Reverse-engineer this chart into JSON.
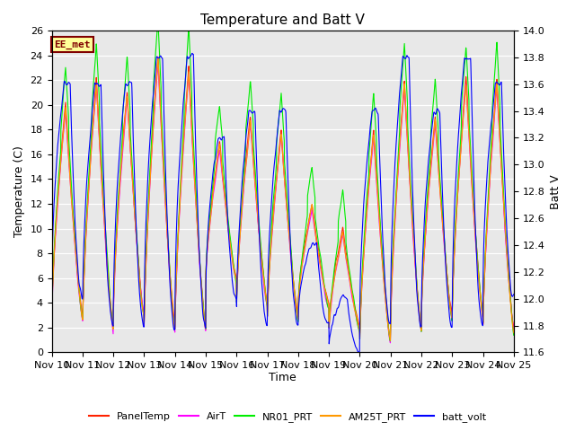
{
  "title": "Temperature and Batt V",
  "xlabel": "Time",
  "ylabel_left": "Temperature (C)",
  "ylabel_right": "Batt V",
  "ylim_left": [
    0,
    26
  ],
  "ylim_right": [
    11.6,
    14.0
  ],
  "x_start": 0,
  "x_end": 15,
  "x_ticks": [
    0,
    1,
    2,
    3,
    4,
    5,
    6,
    7,
    8,
    9,
    10,
    11,
    12,
    13,
    14,
    15
  ],
  "x_tick_labels": [
    "Nov 10",
    "Nov 11",
    "Nov 12",
    "Nov 13",
    "Nov 14",
    "Nov 15",
    "Nov 16",
    "Nov 17",
    "Nov 18",
    "Nov 19",
    "Nov 20",
    "Nov 21",
    "Nov 22",
    "Nov 23",
    "Nov 24",
    "Nov 25"
  ],
  "annotation_text": "EE_met",
  "annotation_fgcolor": "#800000",
  "annotation_bgcolor": "#ffff99",
  "annotation_edgecolor": "#800000",
  "plot_bgcolor": "#e8e8e8",
  "series_colors": {
    "PanelTemp": "#ff2200",
    "AirT": "#ff00ff",
    "NR01_PRT": "#00ee00",
    "AM25T_PRT": "#ff9900",
    "batt_volt": "#0000ff"
  },
  "yticks_left": [
    0,
    2,
    4,
    6,
    8,
    10,
    12,
    14,
    16,
    18,
    20,
    22,
    24,
    26
  ],
  "yticks_right": [
    11.6,
    11.8,
    12.0,
    12.2,
    12.4,
    12.6,
    12.8,
    13.0,
    13.2,
    13.4,
    13.6,
    13.8,
    14.0
  ],
  "title_fontsize": 11,
  "axis_label_fontsize": 9,
  "tick_fontsize": 8
}
